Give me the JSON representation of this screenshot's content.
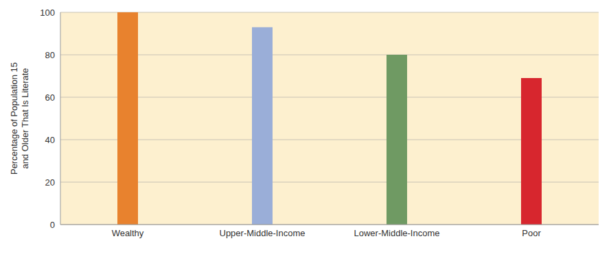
{
  "chart_data": {
    "type": "bar",
    "y_label": "Percentage of Population 15 and Older That Is Literate",
    "categories": [
      "Wealthy",
      "Upper-Middle-Income",
      "Lower-Middle-Income",
      "Poor"
    ],
    "values": [
      100,
      93,
      80,
      69
    ],
    "colors": [
      "#e8822e",
      "#9aaed8",
      "#6f9a63",
      "#d7262e"
    ],
    "ylim": [
      0,
      100
    ],
    "yticks": [
      0,
      20,
      40,
      60,
      80,
      100
    ],
    "grid": true
  }
}
